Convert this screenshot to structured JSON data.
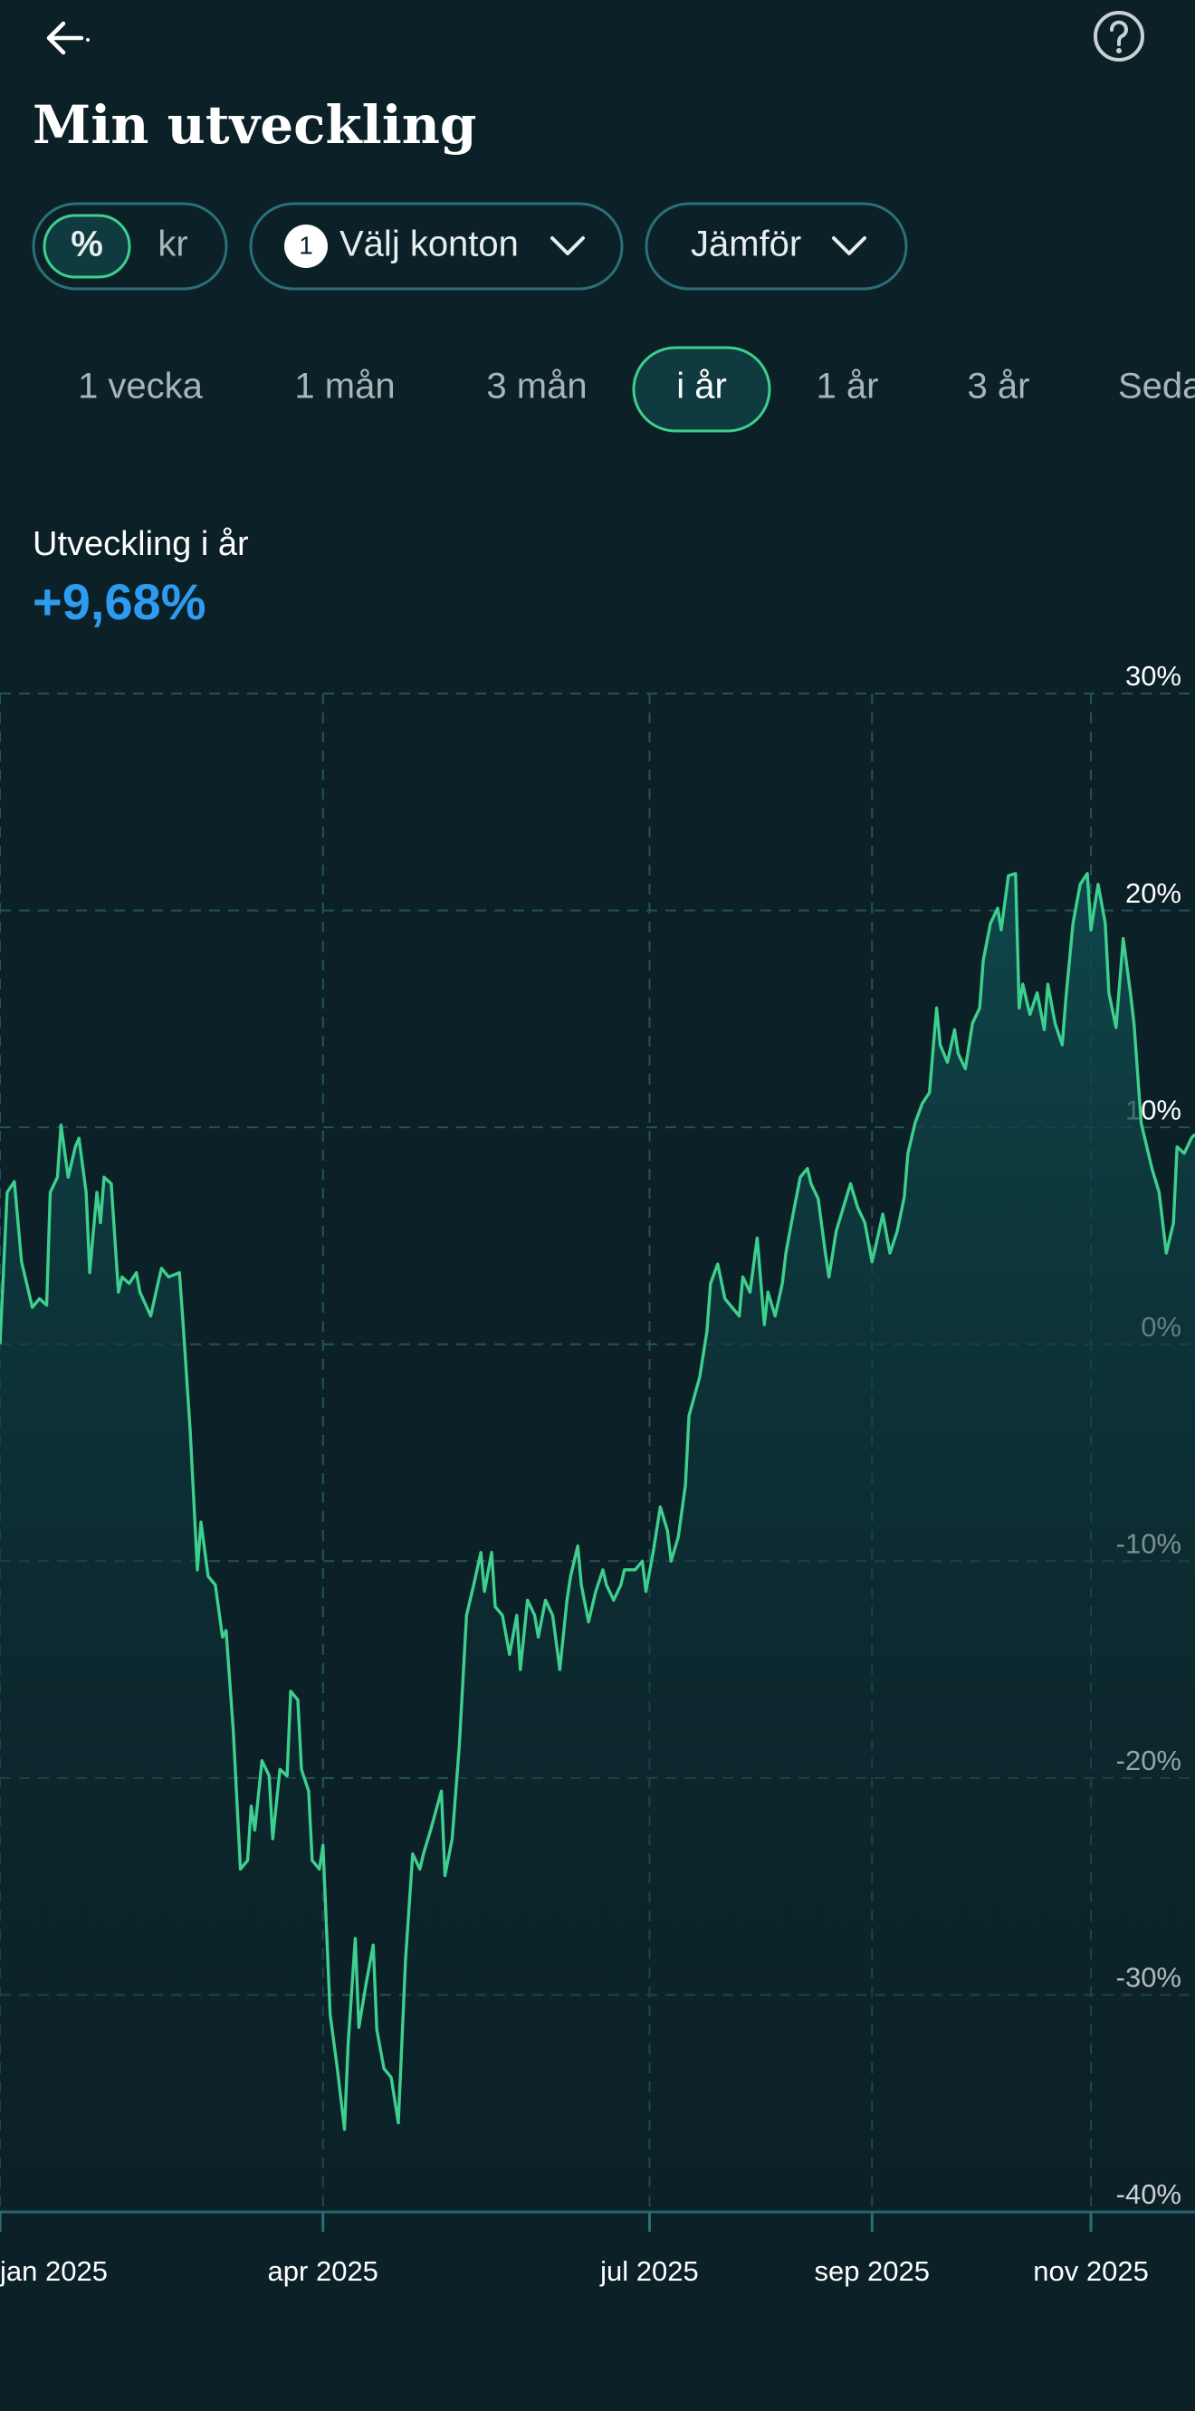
{
  "header": {
    "title": "Min utveckling"
  },
  "controls": {
    "unit_options": [
      "%",
      "kr"
    ],
    "selected_unit_index": 0,
    "account_count": "1",
    "account_button": "Välj konton",
    "compare_button": "Jämför"
  },
  "periods": {
    "options": [
      "1 vecka",
      "1 mån",
      "3 mån",
      "i år",
      "1 år",
      "3 år",
      "Sedan start"
    ],
    "selected_index": 3
  },
  "summary": {
    "label": "Utveckling i år",
    "value": "+9,68%"
  },
  "chart_data": {
    "type": "line",
    "x": [
      0,
      2,
      4,
      6,
      9,
      11,
      13,
      14,
      16,
      17,
      19,
      21,
      22,
      24,
      25,
      27,
      28,
      29,
      31,
      33,
      34,
      36,
      38,
      39,
      42,
      44,
      45,
      47,
      50,
      51,
      53,
      55,
      56,
      58,
      60,
      62,
      63,
      65,
      67,
      69,
      70,
      71,
      73,
      75,
      76,
      78,
      80,
      81,
      83,
      84,
      86,
      87,
      89,
      90,
      92,
      94,
      96,
      97,
      99,
      100,
      102,
      104,
      105,
      107,
      109,
      111,
      113,
      115,
      117,
      118,
      120,
      123,
      124,
      126,
      128,
      130,
      132,
      134,
      135,
      137,
      138,
      140,
      142,
      144,
      145,
      147,
      149,
      150,
      152,
      154,
      156,
      158,
      159,
      161,
      162,
      164,
      166,
      168,
      169,
      171,
      173,
      174,
      177,
      179,
      180,
      182,
      184,
      186,
      187,
      189,
      191,
      192,
      195,
      197,
      198,
      200,
      202,
      204,
      206,
      207,
      209,
      211,
      213,
      214,
      216,
      218,
      219,
      221,
      223,
      225,
      226,
      228,
      230,
      231,
      233,
      235,
      237,
      239,
      241,
      243,
      244,
      246,
      248,
      250,
      252,
      253,
      255,
      257,
      259,
      261,
      262,
      264,
      266,
      267,
      269,
      271,
      273,
      274,
      276,
      278,
      279,
      281,
      283,
      284,
      285,
      287,
      289,
      291,
      292,
      294,
      296,
      297,
      299,
      301,
      303,
      304,
      306,
      308,
      309,
      311,
      313,
      315,
      316,
      318,
      320,
      321,
      323,
      325,
      327,
      328,
      330,
      332,
      333
    ],
    "series": [
      {
        "color": "#3ecf8e",
        "values": [
          0,
          7.0,
          7.5,
          3.8,
          1.7,
          2.1,
          1.8,
          7.0,
          7.7,
          10.1,
          7.7,
          9.1,
          9.5,
          7.0,
          3.3,
          7.0,
          5.6,
          7.7,
          7.4,
          2.4,
          3.1,
          2.8,
          3.3,
          2.4,
          1.3,
          2.8,
          3.5,
          3.1,
          3.3,
          1.0,
          -4.0,
          -10.4,
          -8.2,
          -10.7,
          -11.1,
          -13.5,
          -13.2,
          -17.8,
          -24.2,
          -23.8,
          -21.3,
          -22.4,
          -19.2,
          -19.9,
          -22.8,
          -19.6,
          -19.9,
          -16.0,
          -16.4,
          -19.6,
          -20.6,
          -23.8,
          -24.2,
          -23.1,
          -30.9,
          -33.4,
          -36.2,
          -32.3,
          -27.4,
          -31.5,
          -29.5,
          -27.7,
          -31.6,
          -33.4,
          -33.8,
          -35.9,
          -28.4,
          -23.5,
          -24.2,
          -23.5,
          -22.4,
          -20.6,
          -24.5,
          -22.8,
          -18.5,
          -12.5,
          -11.1,
          -9.6,
          -11.4,
          -9.6,
          -12.1,
          -12.5,
          -14.3,
          -12.5,
          -15.0,
          -11.8,
          -12.5,
          -13.5,
          -11.8,
          -12.5,
          -15.0,
          -11.8,
          -10.7,
          -9.3,
          -11.1,
          -12.8,
          -11.4,
          -10.4,
          -11.1,
          -11.8,
          -11.1,
          -10.4,
          -10.4,
          -10.0,
          -11.4,
          -9.6,
          -7.5,
          -8.6,
          -10.0,
          -8.9,
          -6.5,
          -3.3,
          -1.5,
          0.6,
          2.8,
          3.7,
          2.1,
          1.7,
          1.3,
          3.1,
          2.4,
          4.9,
          0.9,
          2.4,
          1.3,
          2.8,
          4.2,
          6.0,
          7.7,
          8.1,
          7.4,
          6.7,
          4.2,
          3.1,
          5.2,
          6.3,
          7.4,
          6.3,
          5.6,
          3.8,
          4.5,
          6.0,
          4.2,
          5.2,
          6.8,
          8.8,
          10.2,
          11.1,
          11.6,
          15.5,
          13.8,
          13.0,
          14.5,
          13.4,
          12.7,
          14.8,
          15.5,
          17.7,
          19.4,
          20.1,
          19.1,
          21.6,
          21.7,
          15.5,
          16.6,
          15.2,
          16.2,
          14.5,
          16.6,
          14.8,
          13.8,
          15.9,
          19.4,
          21.2,
          21.7,
          19.1,
          21.2,
          19.4,
          16.2,
          14.6,
          18.7,
          16.2,
          14.8,
          10.2,
          8.8,
          8.1,
          7.0,
          4.2,
          5.6,
          9.1,
          8.8,
          9.5,
          9.68
        ]
      }
    ],
    "xlim": [
      0,
      333
    ],
    "xticks": [
      {
        "value": 0,
        "label": "jan 2025"
      },
      {
        "value": 90,
        "label": "apr 2025"
      },
      {
        "value": 181,
        "label": "jul 2025"
      },
      {
        "value": 243,
        "label": "sep 2025"
      },
      {
        "value": 304,
        "label": "nov 2025"
      }
    ],
    "ylim": [
      -40,
      30
    ],
    "yticks": [
      {
        "value": 30,
        "label": "30%"
      },
      {
        "value": 20,
        "label": "20%"
      },
      {
        "value": 10,
        "label": "10%"
      },
      {
        "value": 0,
        "label": "0%"
      },
      {
        "value": -10,
        "label": "-10%"
      },
      {
        "value": -20,
        "label": "-20%"
      },
      {
        "value": -30,
        "label": "-30%"
      },
      {
        "value": -40,
        "label": "-40%"
      }
    ],
    "grid": true
  }
}
